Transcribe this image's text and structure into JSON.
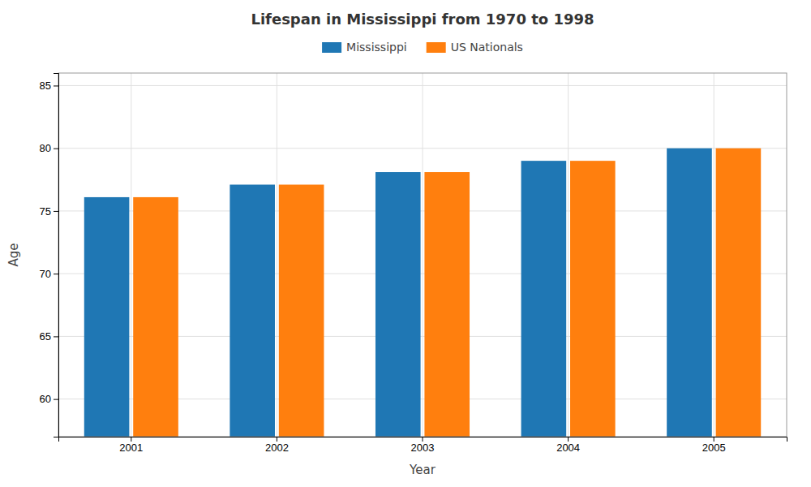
{
  "chart_data": {
    "type": "bar",
    "title": "Lifespan in Mississippi from 1970 to 1998",
    "x_label": "Year",
    "y_label": "Age",
    "categories": [
      "2001",
      "2002",
      "2003",
      "2004",
      "2005"
    ],
    "series": [
      {
        "name": "Mississippi",
        "values": [
          76.1,
          77.1,
          78.1,
          79.0,
          80.0
        ]
      },
      {
        "name": "US Nationals",
        "values": [
          76.1,
          77.1,
          78.1,
          79.0,
          80.0
        ]
      }
    ],
    "ylim": [
      57,
      86
    ],
    "yticks": [
      60,
      65,
      70,
      75,
      80,
      85
    ],
    "grid": true,
    "legend": "top"
  }
}
